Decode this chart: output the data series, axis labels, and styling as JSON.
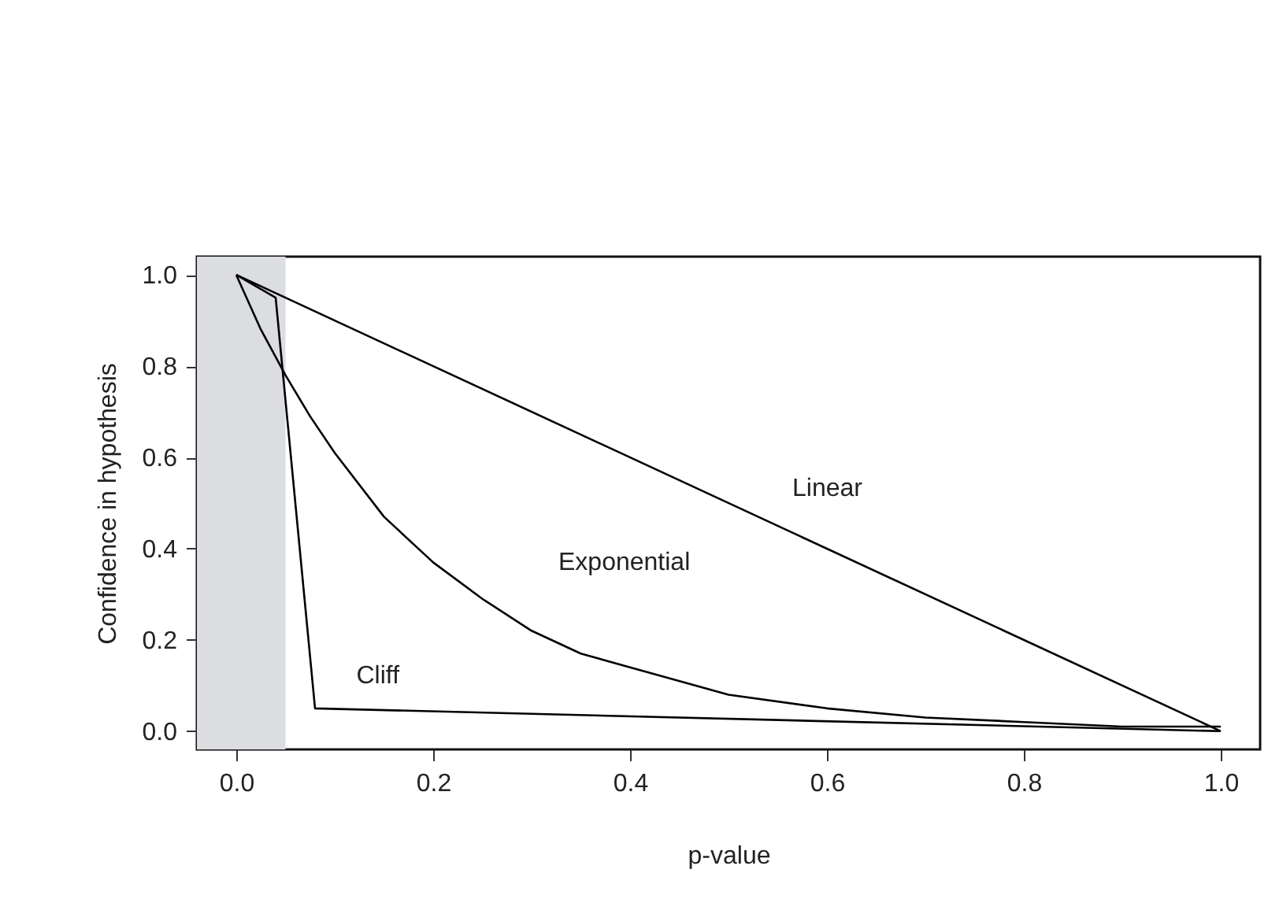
{
  "chart_data": {
    "type": "line",
    "xlabel": "p-value",
    "ylabel": "Confidence in hypothesis",
    "xlim": [
      -0.04,
      1.04
    ],
    "ylim": [
      -0.04,
      1.04
    ],
    "xticks": [
      {
        "value": 0,
        "label": "0.0"
      },
      0.2,
      0.4,
      0.6,
      0.8,
      {
        "value": 1,
        "label": "1.0"
      }
    ],
    "yticks": [
      {
        "value": 0,
        "label": "0.0"
      },
      0.2,
      0.4,
      0.6,
      0.8,
      {
        "value": 1,
        "label": "1.0"
      }
    ],
    "grid": false,
    "marker": "none",
    "line_style": "solid",
    "series": [
      {
        "name": "Linear",
        "color": "#000000",
        "x": [
          0,
          1
        ],
        "values": [
          1,
          0
        ]
      },
      {
        "name": "Exponential",
        "color": "#000000",
        "x": [
          0,
          0.025,
          0.05,
          0.075,
          0.1,
          0.15,
          0.2,
          0.25,
          0.3,
          0.35,
          0.4,
          0.5,
          0.6,
          0.7,
          0.8,
          0.9,
          1
        ],
        "values": [
          1,
          0.88,
          0.78,
          0.69,
          0.61,
          0.47,
          0.37,
          0.29,
          0.22,
          0.17,
          0.14,
          0.08,
          0.05,
          0.03,
          0.02,
          0.01,
          0.01
        ]
      },
      {
        "name": "Cliff",
        "color": "#000000",
        "x": [
          0,
          0.04,
          0.08,
          1
        ],
        "values": [
          1,
          0.95,
          0.05,
          0
        ]
      }
    ],
    "bands": [
      {
        "axis": "x",
        "from": -0.04,
        "to": 0.05,
        "color": "#dcdde0"
      }
    ]
  }
}
